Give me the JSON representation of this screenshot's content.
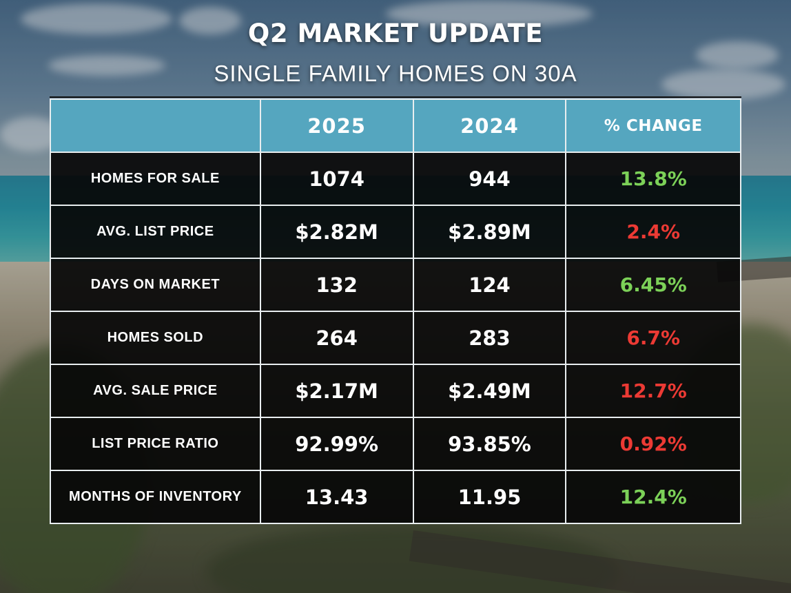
{
  "header": {
    "title": "Q2 MARKET UPDATE",
    "subtitle": "SINGLE FAMILY HOMES ON 30A"
  },
  "table": {
    "columns": [
      "",
      "2025",
      "2024",
      "% CHANGE"
    ],
    "rows": [
      {
        "label": "HOMES FOR SALE",
        "v2025": "1074",
        "v2024": "944",
        "change": "13.8%",
        "direction": "up"
      },
      {
        "label": "AVG. LIST PRICE",
        "v2025": "$2.82M",
        "v2024": "$2.89M",
        "change": "2.4%",
        "direction": "down"
      },
      {
        "label": "DAYS ON MARKET",
        "v2025": "132",
        "v2024": "124",
        "change": "6.45%",
        "direction": "up"
      },
      {
        "label": "HOMES SOLD",
        "v2025": "264",
        "v2024": "283",
        "change": "6.7%",
        "direction": "down"
      },
      {
        "label": "AVG. SALE PRICE",
        "v2025": "$2.17M",
        "v2024": "$2.49M",
        "change": "12.7%",
        "direction": "down"
      },
      {
        "label": "LIST PRICE RATIO",
        "v2025": "92.99%",
        "v2024": "93.85%",
        "change": "0.92%",
        "direction": "down"
      },
      {
        "label": "MONTHS OF INVENTORY",
        "v2025": "13.43",
        "v2024": "11.95",
        "change": "12.4%",
        "direction": "up"
      }
    ]
  },
  "colors": {
    "header_fill": "#55a6bf",
    "cell_fill": "#080808",
    "positive": "#7cd158",
    "negative": "#ec3a34",
    "border": "#e9eef0"
  }
}
